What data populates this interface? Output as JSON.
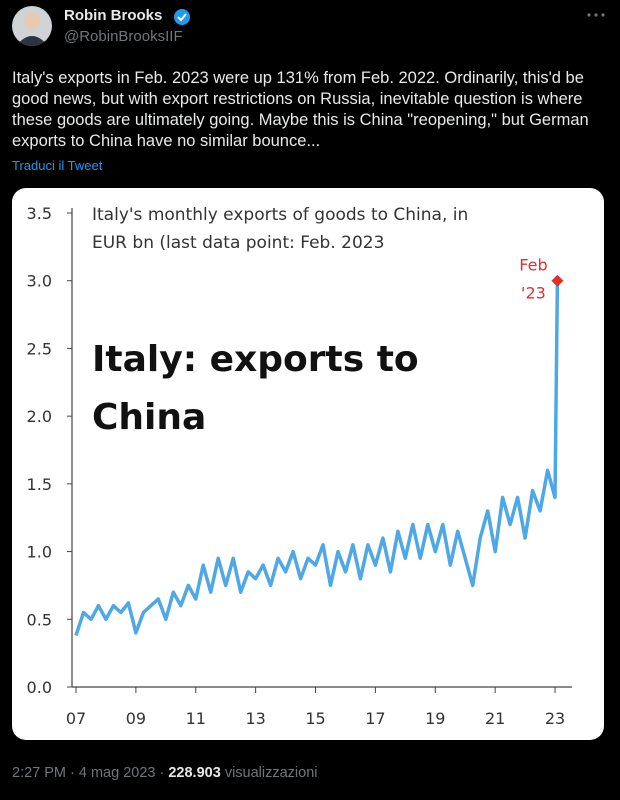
{
  "tweet": {
    "author": "Robin Brooks",
    "handle": "@RobinBrooksIIF",
    "text": "Italy's exports in Feb. 2023 were up 131% from Feb. 2022. Ordinarily, this'd be good news, but with export restrictions on Russia, inevitable question is where these goods are ultimately going. Maybe this is China \"reopening,\" but German exports to China have no similar bounce...",
    "translate": "Traduci il Tweet",
    "timestamp": "2:27 PM · 4 mag 2023 · ",
    "views": "228.903",
    "views_label": "visualizzazioni"
  },
  "chart_data": {
    "type": "line",
    "title_lines": [
      "Italy's monthly exports of goods to China, in",
      "EUR bn (last data point: Feb. 2023"
    ],
    "annotation_lines": [
      "Italy: exports to",
      "China"
    ],
    "last_point_label": [
      "Feb",
      "'23"
    ],
    "color": "#4ea7e6",
    "marker_color": "#e0302a",
    "x": [
      2007,
      2007.25,
      2007.5,
      2007.75,
      2008,
      2008.25,
      2008.5,
      2008.75,
      2009,
      2009.25,
      2009.5,
      2009.75,
      2010,
      2010.25,
      2010.5,
      2010.75,
      2011,
      2011.25,
      2011.5,
      2011.75,
      2012,
      2012.25,
      2012.5,
      2012.75,
      2013,
      2013.25,
      2013.5,
      2013.75,
      2014,
      2014.25,
      2014.5,
      2014.75,
      2015,
      2015.25,
      2015.5,
      2015.75,
      2016,
      2016.25,
      2016.5,
      2016.75,
      2017,
      2017.25,
      2017.5,
      2017.75,
      2018,
      2018.25,
      2018.5,
      2018.75,
      2019,
      2019.25,
      2019.5,
      2019.75,
      2020,
      2020.25,
      2020.5,
      2020.75,
      2021,
      2021.25,
      2021.5,
      2021.75,
      2022,
      2022.25,
      2022.5,
      2022.75,
      2023,
      2023.08
    ],
    "values": [
      0.38,
      0.55,
      0.5,
      0.6,
      0.5,
      0.6,
      0.55,
      0.62,
      0.4,
      0.55,
      0.6,
      0.65,
      0.5,
      0.7,
      0.6,
      0.75,
      0.65,
      0.9,
      0.7,
      0.95,
      0.75,
      0.95,
      0.7,
      0.85,
      0.8,
      0.9,
      0.75,
      0.95,
      0.85,
      1.0,
      0.8,
      0.95,
      0.9,
      1.05,
      0.75,
      1.0,
      0.85,
      1.05,
      0.8,
      1.05,
      0.9,
      1.1,
      0.85,
      1.15,
      0.95,
      1.2,
      0.95,
      1.2,
      1.0,
      1.2,
      0.9,
      1.15,
      0.95,
      0.75,
      1.1,
      1.3,
      1.0,
      1.4,
      1.2,
      1.4,
      1.1,
      1.45,
      1.3,
      1.6,
      1.4,
      3.0
    ],
    "xlim": [
      2007,
      2023.08
    ],
    "ylim": [
      0,
      3.5
    ],
    "xticks": [
      {
        "value": 2007,
        "label": "07"
      },
      {
        "value": 2009,
        "label": "09"
      },
      {
        "value": 2011,
        "label": "11"
      },
      {
        "value": 2013,
        "label": "13"
      },
      {
        "value": 2015,
        "label": "15"
      },
      {
        "value": 2017,
        "label": "17"
      },
      {
        "value": 2019,
        "label": "19"
      },
      {
        "value": 2021,
        "label": "21"
      },
      {
        "value": 2023,
        "label": "23"
      }
    ],
    "yticks": [
      {
        "value": 0,
        "label": "0.0"
      },
      0.5,
      {
        "value": 1,
        "label": "1.0"
      },
      1.5,
      {
        "value": 2,
        "label": "2.0"
      },
      2.5,
      {
        "value": 3,
        "label": "3.0"
      },
      3.5
    ]
  }
}
